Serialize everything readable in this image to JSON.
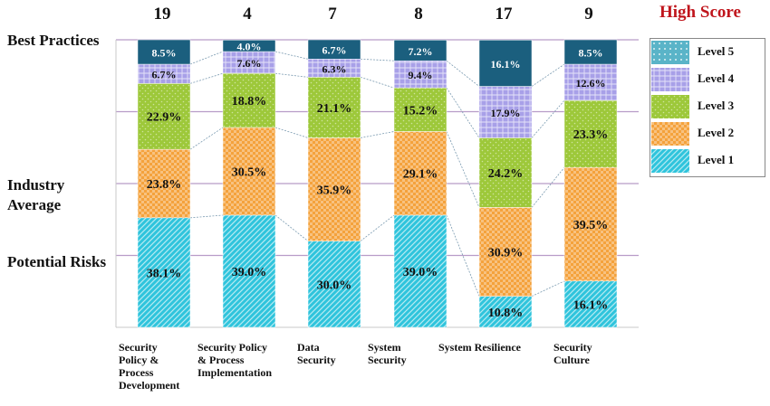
{
  "chart_data": {
    "type": "bar",
    "stacked": true,
    "categories": [
      "Security Policy & Process Development",
      "Security Policy & Process Implementation",
      "Data Security",
      "System Security",
      "System Resilience",
      "Security Culture"
    ],
    "category_label_lines": [
      [
        "Security",
        "Policy  &",
        "Process",
        "Development"
      ],
      [
        "Security  Policy",
        "& Process",
        "Implementation"
      ],
      [
        "Data",
        "Security"
      ],
      [
        "System",
        "Security"
      ],
      [
        "System Resilience"
      ],
      [
        "Security",
        "Culture"
      ]
    ],
    "high_scores": [
      "19",
      "4",
      "7",
      "8",
      "17",
      "9"
    ],
    "high_score_title": "High Score",
    "series": [
      {
        "name": "Level 1",
        "values": [
          38.1,
          39.0,
          30.0,
          39.0,
          10.8,
          16.1
        ],
        "color": "#2fc4dc"
      },
      {
        "name": "Level 2",
        "values": [
          23.8,
          30.5,
          35.9,
          29.1,
          30.9,
          39.5
        ],
        "color": "#f4a23c"
      },
      {
        "name": "Level 3",
        "values": [
          22.9,
          18.8,
          21.1,
          15.2,
          24.2,
          23.3
        ],
        "color": "#9dc83a"
      },
      {
        "name": "Level 4",
        "values": [
          6.7,
          7.6,
          6.3,
          9.4,
          17.9,
          12.6
        ],
        "color": "#a8a0e8"
      },
      {
        "name": "Level 5",
        "values": [
          8.5,
          4.0,
          6.7,
          7.2,
          16.1,
          8.5
        ],
        "color": "#1b5f7e"
      }
    ],
    "value_labels": [
      [
        "38.1%",
        "23.8%",
        "22.9%",
        "6.7%",
        "8.5%"
      ],
      [
        "39.0%",
        "30.5%",
        "18.8%",
        "7.6%",
        "4.0%"
      ],
      [
        "30.0%",
        "35.9%",
        "21.1%",
        "6.3%",
        "6.7%"
      ],
      [
        "39.0%",
        "29.1%",
        "15.2%",
        "9.4%",
        "7.2%"
      ],
      [
        "10.8%",
        "30.9%",
        "24.2%",
        "17.9%",
        "16.1%"
      ],
      [
        "16.1%",
        "39.5%",
        "23.3%",
        "12.6%",
        "8.5%"
      ]
    ],
    "zone_labels": [
      {
        "lines": [
          "Best Practices"
        ],
        "level": 100
      },
      {
        "lines": [
          "Industry",
          "Average"
        ],
        "level": 50
      },
      {
        "lines": [
          "Potential Risks"
        ],
        "level": 25
      }
    ],
    "ylim": [
      0,
      100
    ],
    "grid_levels": [
      25,
      50,
      75,
      100
    ],
    "grid": true,
    "legend_position": "right"
  }
}
